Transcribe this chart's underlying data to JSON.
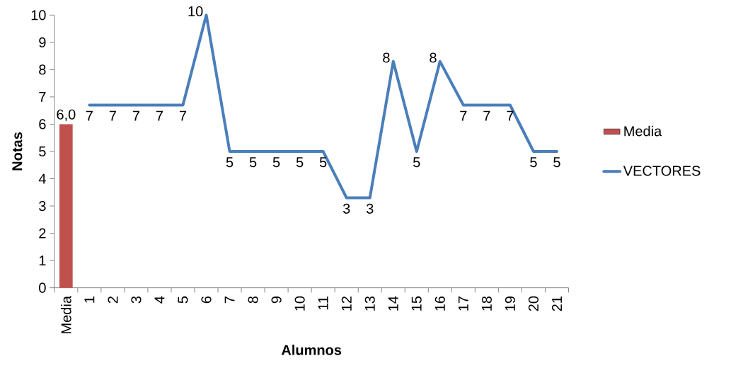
{
  "chart_data": {
    "type": "line",
    "xlabel": "Alumnos",
    "ylabel": "Notas",
    "categories": [
      "Media",
      "1",
      "2",
      "3",
      "4",
      "5",
      "6",
      "7",
      "8",
      "9",
      "10",
      "11",
      "12",
      "13",
      "14",
      "15",
      "16",
      "17",
      "18",
      "19",
      "20",
      "21"
    ],
    "series": [
      {
        "name": "Media",
        "type": "bar",
        "color": "#c0504d",
        "values": [
          6.0,
          null,
          null,
          null,
          null,
          null,
          null,
          null,
          null,
          null,
          null,
          null,
          null,
          null,
          null,
          null,
          null,
          null,
          null,
          null,
          null,
          null
        ],
        "value_labels": [
          "6,0",
          null,
          null,
          null,
          null,
          null,
          null,
          null,
          null,
          null,
          null,
          null,
          null,
          null,
          null,
          null,
          null,
          null,
          null,
          null,
          null,
          null
        ]
      },
      {
        "name": "VECTORES",
        "color": "#4a7ebb",
        "values": [
          null,
          6.7,
          6.7,
          6.7,
          6.7,
          6.7,
          10,
          5,
          5,
          5,
          5,
          5,
          3.3,
          3.3,
          8.3,
          5,
          8.3,
          6.7,
          6.7,
          6.7,
          5,
          5
        ],
        "value_labels": [
          null,
          "7",
          "7",
          "7",
          "7",
          "7",
          "10",
          "5",
          "5",
          "5",
          "5",
          "5",
          "3",
          "3",
          "8",
          "5",
          "8",
          "7",
          "7",
          "7",
          "5",
          "5"
        ]
      }
    ],
    "ylim": [
      0,
      10
    ],
    "yticks": [
      0,
      1,
      2,
      3,
      4,
      5,
      6,
      7,
      8,
      9,
      10
    ],
    "legend": "right"
  }
}
